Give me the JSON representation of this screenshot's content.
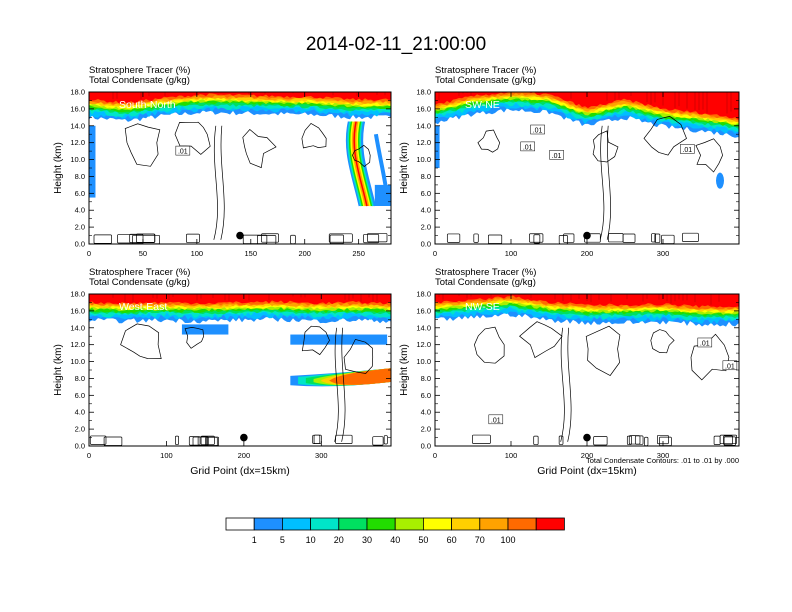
{
  "title": "2014-02-11_21:00:00",
  "label_line1": "Stratosphere Tracer   (%)",
  "label_line2": "Total Condensate   (g/kg)",
  "ylabel": "Height (km)",
  "xlabel": "Grid Point (dx=15km)",
  "contour_note": "Total Condensate Contours: .01 to .01 by .000",
  "contour_label": ".01",
  "yticks": [
    "0.0",
    "2.0",
    "4.0",
    "6.0",
    "8.0",
    "10.0",
    "12.0",
    "14.0",
    "16.0",
    "18.0"
  ],
  "colorbar": {
    "colors": [
      "#ffffff",
      "#1e90ff",
      "#00bfff",
      "#00e5c8",
      "#00e060",
      "#22dd00",
      "#a8f000",
      "#ffff00",
      "#ffd000",
      "#ffa200",
      "#ff6a00",
      "#ff0000"
    ],
    "labels": [
      "1",
      "5",
      "10",
      "20",
      "30",
      "40",
      "50",
      "60",
      "70",
      "100"
    ]
  },
  "chart_data": [
    {
      "type": "heatmap",
      "title": "South-North",
      "xlim": [
        0,
        280
      ],
      "xticks": [
        "0",
        "50",
        "100",
        "150",
        "200",
        "250"
      ],
      "ylim": [
        0,
        18
      ],
      "marker": {
        "x": 140,
        "y": 1.0
      },
      "contour_labels": [
        {
          "x": 87,
          "y": 11.0
        }
      ],
      "tropopause_km": [
        15.6,
        15.2,
        15.8,
        16.2,
        16.1,
        16.0,
        15.9,
        15.6,
        15.6
      ],
      "intrusion_x": [
        236,
        276
      ]
    },
    {
      "type": "heatmap",
      "title": "SW-NE",
      "xlim": [
        0,
        400
      ],
      "xticks": [
        "0",
        "100",
        "200",
        "300"
      ],
      "ylim": [
        0,
        18
      ],
      "marker": {
        "x": 200,
        "y": 1.0
      },
      "contour_labels": [
        {
          "x": 135,
          "y": 13.5
        },
        {
          "x": 122,
          "y": 11.5
        },
        {
          "x": 160,
          "y": 10.5
        },
        {
          "x": 332,
          "y": 11.2
        }
      ],
      "tropopause_km": [
        15.0,
        16.0,
        16.5,
        16.2,
        14.6,
        15.6,
        14.5,
        14.0,
        13.4
      ],
      "intrusion_x": []
    },
    {
      "type": "heatmap",
      "title": "West-East",
      "xlim": [
        0,
        390
      ],
      "xticks": [
        "0",
        "100",
        "200",
        "300"
      ],
      "ylim": [
        0,
        18
      ],
      "marker": {
        "x": 200,
        "y": 1.0
      },
      "contour_labels": [],
      "tropopause_km": [
        15.5,
        15.4,
        15.5,
        15.4,
        15.5,
        15.6,
        15.4,
        15.5,
        15.4
      ],
      "intrusion_x": []
    },
    {
      "type": "heatmap",
      "title": "NW-SE",
      "xlim": [
        0,
        400
      ],
      "xticks": [
        "0",
        "100",
        "200",
        "300"
      ],
      "ylim": [
        0,
        18
      ],
      "marker": {
        "x": 200,
        "y": 1.0
      },
      "contour_labels": [
        {
          "x": 80,
          "y": 3.1
        },
        {
          "x": 355,
          "y": 12.2
        },
        {
          "x": 388,
          "y": 9.5
        }
      ],
      "tropopause_km": [
        15.5,
        15.8,
        16.2,
        15.5,
        15.2,
        15.2,
        15.3,
        15.0,
        15.0
      ],
      "intrusion_x": []
    }
  ]
}
